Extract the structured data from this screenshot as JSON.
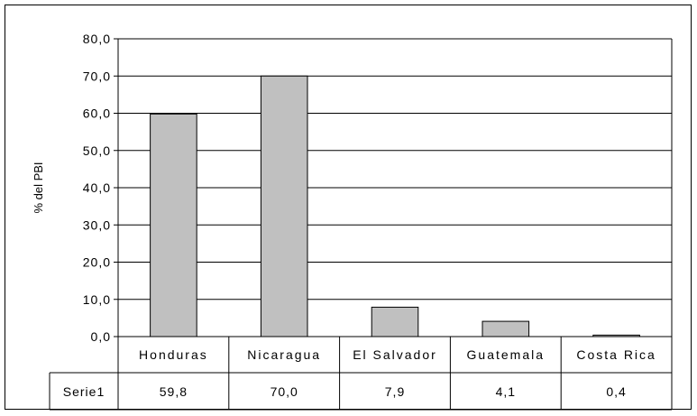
{
  "chart_data": {
    "type": "bar",
    "ylabel": "% del PBI",
    "xlabel": "",
    "title": "",
    "categories": [
      "Honduras",
      "Nicaragua",
      "El Salvador",
      "Guatemala",
      "Costa Rica"
    ],
    "series": [
      {
        "name": "Serie1",
        "values": [
          59.8,
          70.0,
          7.9,
          4.1,
          0.4
        ],
        "value_labels": [
          "59,8",
          "70,0",
          "7,9",
          "4,1",
          "0,4"
        ]
      }
    ],
    "ylim": [
      0,
      80
    ],
    "y_ticks": [
      "0,0",
      "10,0",
      "20,0",
      "30,0",
      "40,0",
      "50,0",
      "60,0",
      "70,0",
      "80,0"
    ],
    "grid": true,
    "data_table": true,
    "bar_color": "#c0c0c0"
  }
}
